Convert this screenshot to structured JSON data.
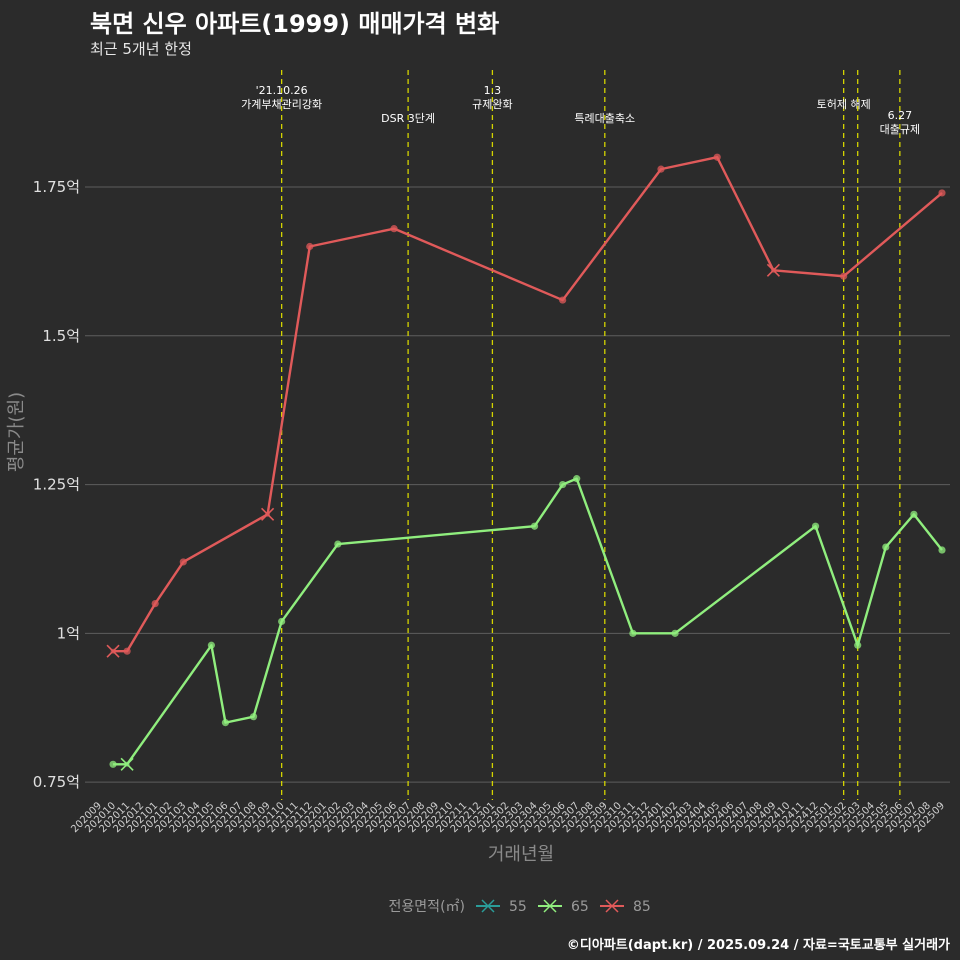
{
  "header": {
    "title": "북면 신우 아파트(1999) 매매가격 변화",
    "subtitle": "최근 5개년 한정"
  },
  "footer": {
    "caption": "©디아파트(dapt.kr) / 2025.09.24 / 자료=국토교통부 실거래가"
  },
  "chart_data": {
    "type": "line",
    "title": "북면 신우 아파트(1999) 매매가격 변화",
    "subtitle": "최근 5개년 한정",
    "xlabel": "거래년월",
    "ylabel": "평균가(원)",
    "ylim": [
      0.72,
      1.96
    ],
    "y_ticks": [
      {
        "value": 0.75,
        "label": "0.75억"
      },
      {
        "value": 1.0,
        "label": "1억"
      },
      {
        "value": 1.25,
        "label": "1.25억"
      },
      {
        "value": 1.5,
        "label": "1.5억"
      },
      {
        "value": 1.75,
        "label": "1.75억"
      }
    ],
    "x_ticks": [
      "202009",
      "202010",
      "202011",
      "202012",
      "202101",
      "202102",
      "202103",
      "202104",
      "202105",
      "202106",
      "202107",
      "202108",
      "202109",
      "202110",
      "202111",
      "202112",
      "202201",
      "202202",
      "202203",
      "202204",
      "202205",
      "202206",
      "202207",
      "202208",
      "202209",
      "202210",
      "202211",
      "202212",
      "202301",
      "202302",
      "202303",
      "202304",
      "202305",
      "202306",
      "202307",
      "202308",
      "202309",
      "202310",
      "202311",
      "202312",
      "202401",
      "202402",
      "202403",
      "202404",
      "202405",
      "202406",
      "202407",
      "202408",
      "202409",
      "202410",
      "202411",
      "202412",
      "202501",
      "202502",
      "202503",
      "202504",
      "202505",
      "202506",
      "202507",
      "202508",
      "202509"
    ],
    "legend": {
      "title": "전용면적(㎡)",
      "position": "bottom",
      "entries": [
        {
          "name": "55",
          "color": "#2a9d9a"
        },
        {
          "name": "65",
          "color": "#90ee7e"
        },
        {
          "name": "85",
          "color": "#e05a5a"
        }
      ]
    },
    "series": [
      {
        "name": "65",
        "color": "#90ee7e",
        "points": [
          {
            "x": "202010",
            "y": 0.78,
            "marker": "circle"
          },
          {
            "x": "202011",
            "y": 0.78,
            "marker": "cross"
          },
          {
            "x": "202105",
            "y": 0.98,
            "marker": "circle"
          },
          {
            "x": "202106",
            "y": 0.85,
            "marker": "circle"
          },
          {
            "x": "202108",
            "y": 0.86,
            "marker": "circle"
          },
          {
            "x": "202110",
            "y": 1.02,
            "marker": "circle"
          },
          {
            "x": "202202",
            "y": 1.15,
            "marker": "circle"
          },
          {
            "x": "202304",
            "y": 1.18,
            "marker": "circle"
          },
          {
            "x": "202306",
            "y": 1.25,
            "marker": "circle"
          },
          {
            "x": "202307",
            "y": 1.26,
            "marker": "circle"
          },
          {
            "x": "202311",
            "y": 1.0,
            "marker": "circle"
          },
          {
            "x": "202402",
            "y": 1.0,
            "marker": "circle"
          },
          {
            "x": "202412",
            "y": 1.18,
            "marker": "circle"
          },
          {
            "x": "202503",
            "y": 0.98,
            "marker": "circle"
          },
          {
            "x": "202505",
            "y": 1.145,
            "marker": "circle"
          },
          {
            "x": "202507",
            "y": 1.2,
            "marker": "circle"
          },
          {
            "x": "202509",
            "y": 1.14,
            "marker": "circle"
          }
        ]
      },
      {
        "name": "85",
        "color": "#e05a5a",
        "points": [
          {
            "x": "202010",
            "y": 0.97,
            "marker": "cross"
          },
          {
            "x": "202011",
            "y": 0.97,
            "marker": "circle"
          },
          {
            "x": "202101",
            "y": 1.05,
            "marker": "circle"
          },
          {
            "x": "202103",
            "y": 1.12,
            "marker": "circle"
          },
          {
            "x": "202109",
            "y": 1.2,
            "marker": "cross"
          },
          {
            "x": "202112",
            "y": 1.65,
            "marker": "circle"
          },
          {
            "x": "202206",
            "y": 1.68,
            "marker": "circle"
          },
          {
            "x": "202306",
            "y": 1.56,
            "marker": "circle"
          },
          {
            "x": "202401",
            "y": 1.78,
            "marker": "circle"
          },
          {
            "x": "202405",
            "y": 1.8,
            "marker": "circle"
          },
          {
            "x": "202409",
            "y": 1.61,
            "marker": "cross"
          },
          {
            "x": "202502",
            "y": 1.6,
            "marker": "circle"
          },
          {
            "x": "202509",
            "y": 1.74,
            "marker": "circle"
          }
        ]
      }
    ],
    "events": [
      {
        "x": "202110",
        "lines": [
          "'21.10.26",
          "가계부채관리강화"
        ],
        "row": 0
      },
      {
        "x": "202207",
        "lines": [
          "DSR 3단계"
        ],
        "row": 2
      },
      {
        "x": "202301",
        "lines": [
          "1.3",
          "규제완화"
        ],
        "row": 0
      },
      {
        "x": "202309",
        "lines": [
          "특례대출축소"
        ],
        "row": 2
      },
      {
        "x": "202502",
        "lines": [
          "토허제 해제"
        ],
        "row": 1
      },
      {
        "x": "202503",
        "lines": [],
        "row": 1
      },
      {
        "x": "202506",
        "lines": [
          "6.27",
          "대출규제"
        ],
        "row": 1.8
      }
    ]
  }
}
